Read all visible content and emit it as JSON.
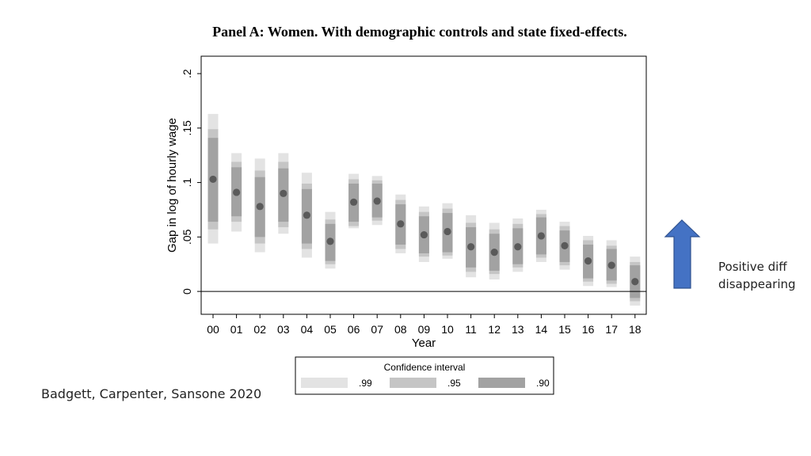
{
  "chart_data": {
    "type": "scatter",
    "title": "Panel A: Women. With demographic controls and state fixed-effects.",
    "xlabel": "Year",
    "ylabel": "Gap in log of hourly wage",
    "categories": [
      "00",
      "01",
      "02",
      "03",
      "04",
      "05",
      "06",
      "07",
      "08",
      "09",
      "10",
      "11",
      "12",
      "13",
      "14",
      "15",
      "16",
      "17",
      "18"
    ],
    "yticks": [
      {
        "value": 0,
        "label": "0"
      },
      {
        "value": 0.05,
        "label": ".05"
      },
      {
        "value": 0.1,
        "label": ".1"
      },
      {
        "value": 0.15,
        "label": ".15"
      },
      {
        "value": 0.2,
        "label": ".2"
      }
    ],
    "ylim": [
      -0.021,
      0.216
    ],
    "reference_line": 0,
    "series": [
      {
        "name": "point estimate",
        "values": [
          0.103,
          0.091,
          0.078,
          0.09,
          0.07,
          0.046,
          0.082,
          0.083,
          0.062,
          0.052,
          0.055,
          0.041,
          0.036,
          0.041,
          0.051,
          0.042,
          0.028,
          0.024,
          0.009
        ]
      },
      {
        "name": ".90",
        "lower": [
          0.064,
          0.069,
          0.05,
          0.064,
          0.044,
          0.028,
          0.064,
          0.068,
          0.043,
          0.035,
          0.036,
          0.022,
          0.019,
          0.025,
          0.034,
          0.027,
          0.012,
          0.01,
          -0.006
        ],
        "upper": [
          0.141,
          0.114,
          0.105,
          0.113,
          0.094,
          0.062,
          0.099,
          0.099,
          0.08,
          0.069,
          0.072,
          0.059,
          0.053,
          0.058,
          0.068,
          0.056,
          0.043,
          0.039,
          0.024
        ]
      },
      {
        "name": ".95",
        "lower": [
          0.057,
          0.064,
          0.044,
          0.059,
          0.039,
          0.025,
          0.06,
          0.065,
          0.039,
          0.032,
          0.033,
          0.018,
          0.016,
          0.022,
          0.031,
          0.024,
          0.009,
          0.007,
          -0.009
        ],
        "upper": [
          0.149,
          0.119,
          0.111,
          0.119,
          0.099,
          0.066,
          0.103,
          0.102,
          0.084,
          0.073,
          0.076,
          0.063,
          0.057,
          0.062,
          0.071,
          0.06,
          0.047,
          0.042,
          0.027
        ]
      },
      {
        "name": ".99",
        "lower": [
          0.044,
          0.055,
          0.036,
          0.053,
          0.031,
          0.021,
          0.058,
          0.061,
          0.035,
          0.027,
          0.03,
          0.013,
          0.011,
          0.018,
          0.027,
          0.02,
          0.005,
          0.004,
          -0.013
        ],
        "upper": [
          0.163,
          0.127,
          0.122,
          0.127,
          0.109,
          0.073,
          0.108,
          0.106,
          0.089,
          0.078,
          0.081,
          0.07,
          0.063,
          0.067,
          0.075,
          0.064,
          0.051,
          0.047,
          0.032
        ]
      }
    ],
    "legend": {
      "title": "Confidence interval",
      "position": "bottom-center",
      "entries": [
        {
          "label": ".99",
          "color": "#e3e3e3"
        },
        {
          "label": ".95",
          "color": "#c5c5c5"
        },
        {
          "label": ".90",
          "color": "#a2a2a2"
        }
      ]
    },
    "colors": {
      "marker": "#5a5a5a",
      "band99": "#e3e3e3",
      "band95": "#c5c5c5",
      "band90": "#a2a2a2",
      "axis": "#000000",
      "arrow_fill": "#4472c4",
      "arrow_stroke": "#2f528f"
    }
  },
  "annotation": {
    "line1": "Positive diff",
    "line2": "disappearing"
  },
  "citation": "Badgett, Carpenter, Sansone 2020"
}
